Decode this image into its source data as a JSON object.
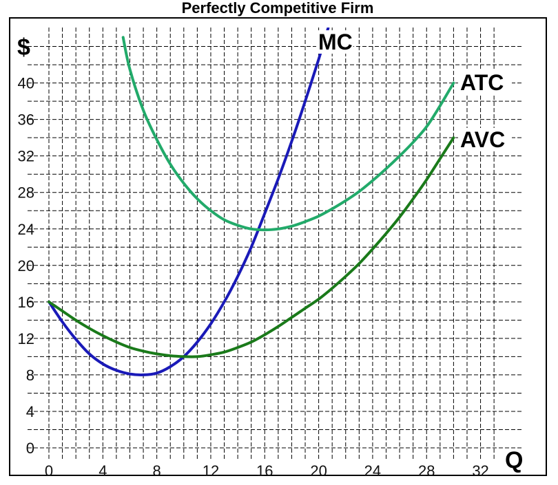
{
  "chart_data": {
    "type": "line",
    "title": "Perfectly Competitive Firm",
    "ylabel": "$",
    "xlabel": "Q",
    "xlim": [
      0,
      34
    ],
    "ylim": [
      0,
      45
    ],
    "grid": true,
    "x_ticks": [
      0,
      4,
      8,
      12,
      16,
      20,
      24,
      28,
      32
    ],
    "y_ticks": [
      0,
      4,
      8,
      12,
      16,
      20,
      24,
      28,
      32,
      36,
      40
    ],
    "series": [
      {
        "name": "MC",
        "color": "#1a1ab8",
        "x": [
          0,
          1,
          2,
          3,
          4,
          5,
          6,
          7,
          8,
          9,
          10,
          11,
          12,
          13,
          14,
          15,
          16,
          17,
          18,
          19,
          20,
          20.7
        ],
        "y": [
          16,
          13.8,
          11.9,
          10.3,
          9.2,
          8.5,
          8.1,
          8.0,
          8.2,
          8.9,
          10.0,
          11.6,
          13.6,
          16.0,
          18.8,
          22.0,
          25.7,
          29.5,
          33.6,
          38.0,
          42.6,
          46.0
        ]
      },
      {
        "name": "ATC",
        "color": "#22aa6a",
        "x": [
          5.5,
          6,
          7,
          8,
          9,
          10,
          11,
          12,
          13,
          14,
          15,
          16,
          17,
          18,
          19,
          20,
          21,
          22,
          23,
          24,
          25,
          26,
          27,
          28,
          29,
          30
        ],
        "y": [
          45.0,
          41.5,
          37.0,
          33.8,
          31.1,
          29.0,
          27.3,
          26.0,
          25.0,
          24.4,
          24.0,
          23.9,
          24.0,
          24.3,
          24.8,
          25.4,
          26.2,
          27.1,
          28.1,
          29.3,
          30.6,
          32.0,
          33.5,
          35.2,
          37.5,
          40.0
        ]
      },
      {
        "name": "AVC",
        "color": "#1a7a1a",
        "x": [
          0,
          1,
          2,
          3,
          4,
          5,
          6,
          7,
          8,
          9,
          10,
          11,
          12,
          13,
          14,
          15,
          16,
          17,
          18,
          19,
          20,
          21,
          22,
          23,
          24,
          25,
          26,
          27,
          28,
          29,
          30
        ],
        "y": [
          16,
          15.0,
          14.0,
          13.1,
          12.3,
          11.6,
          11.0,
          10.6,
          10.3,
          10.1,
          10.0,
          10.0,
          10.2,
          10.5,
          11.0,
          11.6,
          12.4,
          13.3,
          14.3,
          15.3,
          16.3,
          17.5,
          18.8,
          20.2,
          21.8,
          23.5,
          25.3,
          27.3,
          29.4,
          31.7,
          34.0
        ]
      }
    ]
  }
}
